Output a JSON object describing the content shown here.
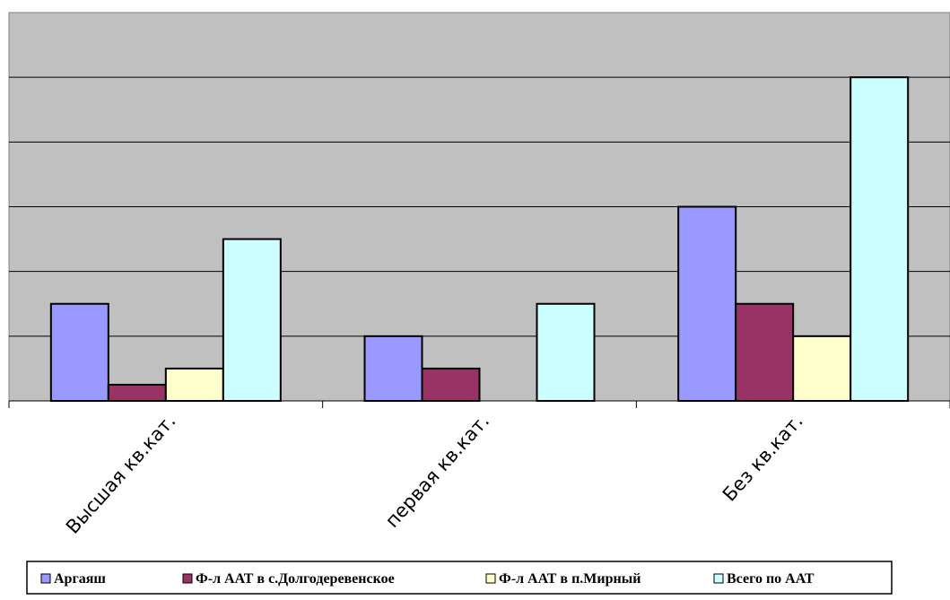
{
  "chart_data": {
    "type": "bar",
    "title": "",
    "xlabel": "",
    "ylabel": "",
    "ylim": [
      0,
      12
    ],
    "grid": true,
    "legend_position": "bottom",
    "categories": [
      "Высшая кв.кат.",
      "первая кв.кат.",
      "Без кв.кат."
    ],
    "series": [
      {
        "name": "Аргаяш",
        "color": "#9999ff",
        "values": [
          3,
          2,
          6
        ]
      },
      {
        "name": "Ф-л ААТ в с.Долгодеревенское",
        "color": "#993366",
        "values": [
          0.5,
          1,
          3
        ]
      },
      {
        "name": "Ф-л ААТ в п.Мирный",
        "color": "#ffffcc",
        "values": [
          1,
          0,
          2
        ]
      },
      {
        "name": "Всего по ААТ",
        "color": "#ccffff",
        "values": [
          5,
          3,
          10
        ]
      }
    ],
    "plot_background": "#c0c0c0"
  }
}
